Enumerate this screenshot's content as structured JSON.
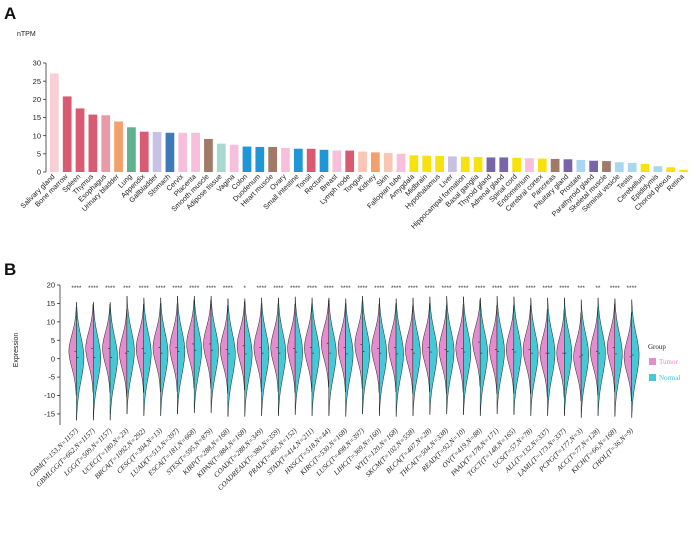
{
  "panels": {
    "a_label": "A",
    "b_label": "B"
  },
  "chart_data": [
    {
      "type": "bar",
      "ylabel": "nTPM",
      "ylim": [
        0,
        30
      ],
      "yticks": [
        0,
        5,
        10,
        15,
        20,
        25,
        30
      ],
      "grid": false,
      "categories": [
        "Salivary gland",
        "Bone marrow",
        "Spleen",
        "Thymus",
        "Esophagus",
        "Urinary bladder",
        "Lung",
        "Appendix",
        "Gallbladder",
        "Stomach",
        "Cervix",
        "Placenta",
        "Smooth muscle",
        "Adipose tissue",
        "Vagina",
        "Colon",
        "Duodenum",
        "Heart muscle",
        "Ovary",
        "Small intestine",
        "Tonsil",
        "Rectum",
        "Breast",
        "Lymph node",
        "Tongue",
        "Kidney",
        "Skin",
        "Fallopian tube",
        "Amygdala",
        "Midbrain",
        "Hypothalamus",
        "Liver",
        "Hippocampal formation",
        "Basal ganglia",
        "Thyroid gland",
        "Adrenal gland",
        "Spinal cord",
        "Endometrium",
        "Cerebral cortex",
        "Pancreas",
        "Pituitary gland",
        "Prostate",
        "Parathyroid gland",
        "Skeletal muscle",
        "Seminal vesicle",
        "Testis",
        "Cerebellum",
        "Epididymis",
        "Choroid plexus",
        "Retina"
      ],
      "values": [
        27.1,
        20.8,
        17.5,
        15.8,
        15.6,
        13.9,
        12.3,
        11.1,
        11.0,
        10.8,
        10.8,
        10.8,
        9.1,
        7.8,
        7.5,
        7.0,
        6.9,
        6.9,
        6.6,
        6.4,
        6.4,
        6.1,
        5.9,
        5.9,
        5.6,
        5.4,
        5.2,
        5.0,
        4.6,
        4.5,
        4.4,
        4.3,
        4.2,
        4.1,
        4.0,
        4.0,
        3.9,
        3.8,
        3.7,
        3.6,
        3.5,
        3.3,
        3.1,
        3.0,
        2.7,
        2.5,
        2.2,
        1.6,
        1.3,
        0.6
      ],
      "colors": [
        "#f9cfd6",
        "#d85b72",
        "#d85b72",
        "#d85b72",
        "#e89aa8",
        "#f3a06a",
        "#5fb08e",
        "#d85b72",
        "#c7c2e3",
        "#3f79b8",
        "#f7bfdc",
        "#f7bfdc",
        "#a07a66",
        "#a8d8cf",
        "#f7bfdc",
        "#1e96d8",
        "#1e96d8",
        "#a07a66",
        "#f7bfdc",
        "#1e96d8",
        "#d85b72",
        "#1e96d8",
        "#f7bfdc",
        "#d85b72",
        "#f9c5b4",
        "#f3a06a",
        "#f9c5b4",
        "#f7bfdc",
        "#f7e10f",
        "#f7e10f",
        "#f7e10f",
        "#c7c2e3",
        "#f7e10f",
        "#f7e10f",
        "#7a64a8",
        "#7a64a8",
        "#f7e10f",
        "#f7bfdc",
        "#f7e10f",
        "#a07a66",
        "#7a64a8",
        "#a8d8f0",
        "#7a64a8",
        "#a07a66",
        "#a8d8f0",
        "#a8d8f0",
        "#f7e10f",
        "#a8d8f0",
        "#f7e10f",
        "#f7e10f"
      ]
    },
    {
      "type": "violin",
      "ylabel": "Expression",
      "ylim": [
        -18,
        20
      ],
      "yticks": [
        -15,
        -10,
        -5,
        0,
        5,
        10,
        15,
        20
      ],
      "legend": {
        "title": "Group",
        "placement": "right",
        "items": [
          {
            "label": "Tumor",
            "color": "#e58ccf"
          },
          {
            "label": "Normal",
            "color": "#45c9d6"
          }
        ]
      },
      "categories": [
        "GBM(T=153,N=1157)",
        "GBMLGG(T=662,N=1157)",
        "LGG(T=509,N=1157)",
        "UCEC(T=180,N=23)",
        "BRCA(T=1092,N=292)",
        "CESC(T=304,N=13)",
        "LUAD(T=513,N=397)",
        "ESCA(T=181,N=668)",
        "STES(T=595,N=879)",
        "KIRP(T=288,N=168)",
        "KIPAN(T=884,N=168)",
        "COAD(T=288,N=349)",
        "COADREAD(T=380,N=359)",
        "PRAD(T=495,N=152)",
        "STAD(T=414,N=211)",
        "HNSC(T=518,N=44)",
        "KIRC(T=530,N=168)",
        "LUSC(T=498,N=397)",
        "LIHC(T=369,N=160)",
        "WT(T=120,N=168)",
        "SKCM(T=102,N=558)",
        "BLCA(T=407,N=28)",
        "THCA(T=504,N=338)",
        "READ(T=92,N=10)",
        "OV(T=419,N=88)",
        "PAAD(T=178,N=171)",
        "TGCT(T=148,N=165)",
        "UCS(T=57,N=78)",
        "ALL(T=132,N=337)",
        "LAML(T=173,N=337)",
        "PCPG(T=177,N=3)",
        "ACC(T=77,N=128)",
        "KICH(T=66,N=168)",
        "CHOL(T=36,N=9)"
      ],
      "significance": [
        "****",
        "****",
        "****",
        "***",
        "****",
        "****",
        "****",
        "****",
        "****",
        "****",
        "*",
        "****",
        "****",
        "****",
        "****",
        "****",
        "****",
        "****",
        "****",
        "****",
        "****",
        "****",
        "****",
        "****",
        "****",
        "****",
        "****",
        "****",
        "****",
        "****",
        "***",
        "**",
        "****",
        "****"
      ],
      "tumor_median": [
        2.0,
        2.8,
        2.8,
        1.5,
        2.8,
        3.0,
        3.0,
        4.0,
        4.0,
        2.5,
        3.5,
        3.0,
        3.0,
        2.8,
        3.0,
        4.2,
        3.0,
        3.8,
        2.8,
        3.0,
        2.5,
        3.0,
        2.5,
        2.8,
        4.5,
        2.5,
        2.5,
        2.5,
        1.5,
        1.5,
        0.5,
        2.0,
        3.0,
        0.5
      ],
      "normal_median": [
        0.3,
        0.3,
        0.3,
        2.0,
        1.5,
        1.5,
        2.0,
        2.3,
        2.3,
        1.3,
        1.3,
        1.5,
        1.5,
        1.8,
        1.5,
        1.5,
        1.3,
        2.0,
        1.5,
        1.3,
        1.5,
        1.8,
        2.0,
        1.8,
        1.5,
        2.0,
        1.8,
        1.5,
        1.5,
        1.5,
        1.0,
        1.5,
        1.3,
        1.0
      ]
    }
  ]
}
